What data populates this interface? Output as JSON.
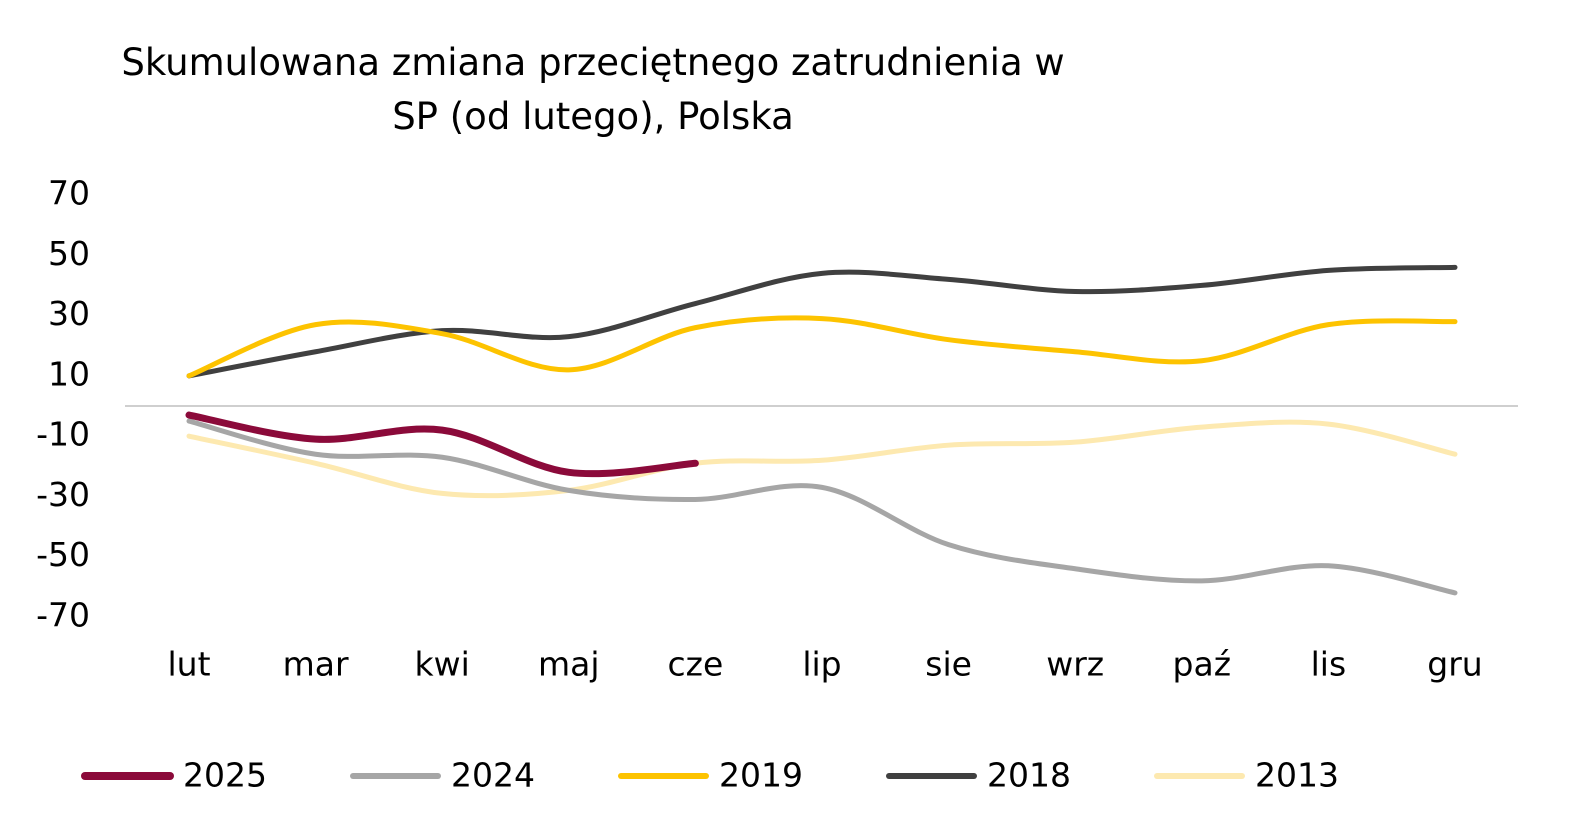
{
  "chart_data": {
    "type": "line",
    "title": "Skumulowana zmiana przeciętnego zatrudnienia w SP (od lutego), Polska",
    "categories": [
      "lut",
      "mar",
      "kwi",
      "maj",
      "cze",
      "lip",
      "sie",
      "wrz",
      "paź",
      "lis",
      "gru"
    ],
    "series": [
      {
        "name": "2025",
        "color": "#8b0a3a",
        "values": [
          -3,
          -11,
          -8,
          -22,
          -19,
          null,
          null,
          null,
          null,
          null,
          null
        ]
      },
      {
        "name": "2024",
        "color": "#a6a6a6",
        "values": [
          -5,
          -16,
          -17,
          -28,
          -31,
          -27,
          -46,
          -54,
          -58,
          -53,
          -62
        ]
      },
      {
        "name": "2019",
        "color": "#fdc300",
        "values": [
          10,
          27,
          24,
          12,
          26,
          29,
          22,
          18,
          15,
          27,
          28
        ]
      },
      {
        "name": "2018",
        "color": "#404040",
        "values": [
          10,
          18,
          25,
          23,
          34,
          44,
          42,
          38,
          40,
          45,
          46
        ]
      },
      {
        "name": "2013",
        "color": "#fde9b0",
        "values": [
          -10,
          -19,
          -29,
          -28,
          -19,
          -18,
          -13,
          -12,
          -7,
          -6,
          -16
        ]
      }
    ],
    "ylim": [
      -70,
      70
    ],
    "yticks": [
      70,
      50,
      30,
      10,
      -10,
      -30,
      -50,
      -70
    ],
    "legend": "bottom"
  }
}
